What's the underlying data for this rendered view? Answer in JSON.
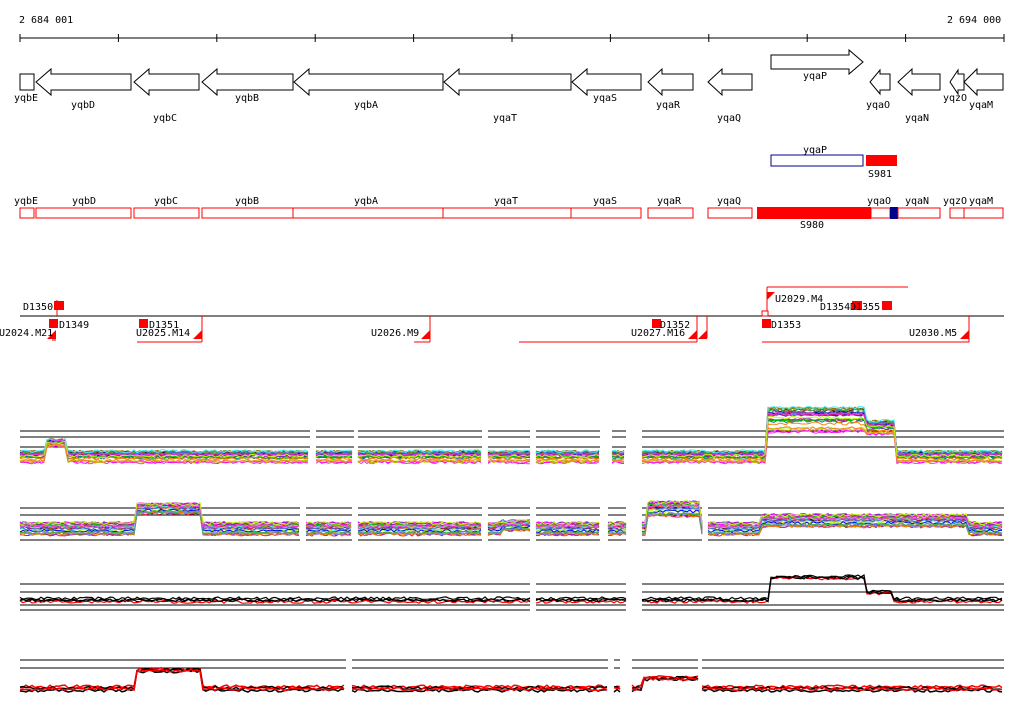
{
  "ruler": {
    "start_label": "2 684 001",
    "end_label": "2 694 000"
  },
  "colors": {
    "feature_red": "#ff0000",
    "outline_blue": "#00008b",
    "track_black": "#000000"
  },
  "genes": [
    {
      "name": "yqbE",
      "strand": "-"
    },
    {
      "name": "yqbD",
      "strand": "-"
    },
    {
      "name": "yqbC",
      "strand": "-"
    },
    {
      "name": "yqbB",
      "strand": "-"
    },
    {
      "name": "yqbA",
      "strand": "-"
    },
    {
      "name": "yqaT",
      "strand": "-"
    },
    {
      "name": "yqaS",
      "strand": "-"
    },
    {
      "name": "yqaR",
      "strand": "-"
    },
    {
      "name": "yqaQ",
      "strand": "-"
    },
    {
      "name": "yqaP",
      "strand": "+"
    },
    {
      "name": "yqaO",
      "strand": "-"
    },
    {
      "name": "yqaN",
      "strand": "-"
    },
    {
      "name": "yqzO",
      "strand": "-"
    },
    {
      "name": "yqaM",
      "strand": "-"
    }
  ],
  "strand_plus_track": {
    "gene": "yqaP",
    "segment": "S981"
  },
  "segment_track": {
    "segment": "S980"
  },
  "segment_track_genes": [
    "yqbE",
    "yqbD",
    "yqbC",
    "yqbB",
    "yqbA",
    "yqaT",
    "yqaS",
    "yqaR",
    "yqaQ",
    "yqaO",
    "yqaN",
    "yqzO",
    "yqaM"
  ],
  "upshifts": [
    "U2029.M4",
    "U2024.M21",
    "U2025.M14",
    "U2026.M9",
    "U2027.M16",
    "U2030.M5"
  ],
  "downshifts": [
    "D1350",
    "D1349",
    "D1351",
    "D1352",
    "D1353",
    "D1354",
    "D1355"
  ]
}
